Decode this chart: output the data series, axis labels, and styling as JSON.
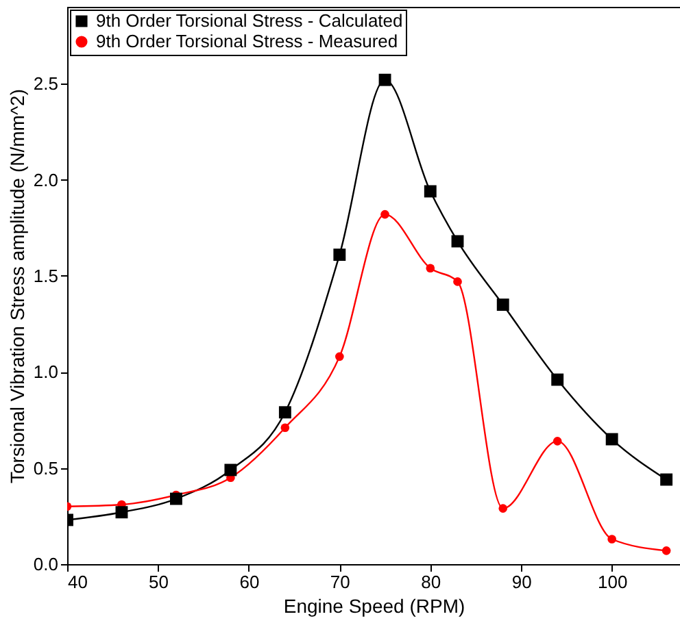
{
  "chart_data": {
    "type": "line",
    "xlabel": "Engine Speed (RPM)",
    "ylabel": "Torsional Vibration Stress amplitude (N/mm^2)",
    "x": [
      40,
      46,
      52,
      58,
      64,
      70,
      75,
      80,
      83,
      88,
      94,
      100,
      106
    ],
    "series": [
      {
        "name": "9th Order Torsional Stress - Calculated",
        "color": "#000000",
        "marker": "square",
        "values": [
          0.23,
          0.27,
          0.34,
          0.49,
          0.79,
          1.61,
          2.52,
          1.94,
          1.68,
          1.35,
          0.96,
          0.65,
          0.44
        ]
      },
      {
        "name": "9th Order Torsional Stress - Measured",
        "color": "#ff0000",
        "marker": "circle",
        "values": [
          0.3,
          0.31,
          0.36,
          0.45,
          0.71,
          1.08,
          1.82,
          1.54,
          1.47,
          0.29,
          0.64,
          0.13,
          0.07
        ]
      }
    ],
    "xlim": [
      40,
      107.5
    ],
    "xticks": [
      40,
      50,
      60,
      70,
      80,
      90,
      100
    ],
    "ylim": [
      0,
      2.9
    ],
    "yticks": [
      {
        "value": 0,
        "label": "0.0"
      },
      {
        "value": 0.5,
        "label": "0.5"
      },
      {
        "value": 1,
        "label": "1.0"
      },
      {
        "value": 1.5,
        "label": "1.5"
      },
      {
        "value": 2,
        "label": "2.0"
      },
      {
        "value": 2.5,
        "label": "2.5"
      }
    ],
    "grid": false,
    "legend": "top left",
    "line_style": "solid"
  }
}
